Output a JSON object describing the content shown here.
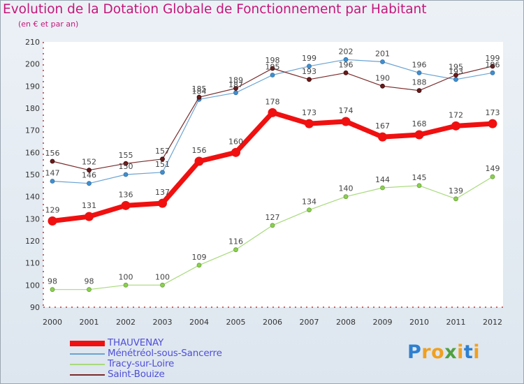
{
  "header": {
    "title": "Evolution de la Dotation Globale de Fonctionnement par Habitant",
    "subtitle": "(en € et par an)"
  },
  "chart_data": {
    "type": "line",
    "title": "Evolution de la Dotation Globale de Fonctionnement par Habitant",
    "subtitle": "(en € et par an)",
    "xlabel": "",
    "ylabel": "",
    "ylim": [
      90,
      210
    ],
    "yticks": [
      90,
      100,
      110,
      120,
      130,
      140,
      150,
      160,
      170,
      180,
      190,
      200,
      210
    ],
    "categories": [
      "2000",
      "2001",
      "2002",
      "2003",
      "2004",
      "2005",
      "2006",
      "2007",
      "2008",
      "2009",
      "2010",
      "2011",
      "2012"
    ],
    "series": [
      {
        "name": "THAUVENAY",
        "color": "#f01010",
        "values": [
          129,
          131,
          136,
          137,
          156,
          160,
          178,
          173,
          174,
          167,
          168,
          172,
          173
        ],
        "value_labels": [
          "129",
          "131",
          "136",
          "137",
          "156",
          "160",
          "178",
          "173",
          "174",
          "167",
          "168",
          "172",
          "173"
        ]
      },
      {
        "name": "Ménétréol-sous-Sancerre",
        "color": "#6aa3d2",
        "values": [
          147,
          146,
          150,
          151,
          184,
          187,
          195,
          199,
          202,
          201,
          196,
          193,
          196
        ],
        "value_labels": [
          "147",
          "146",
          "150",
          "151",
          "184",
          "187",
          "195",
          "199",
          "202",
          "201",
          "196",
          "193",
          "196"
        ]
      },
      {
        "name": "Tracy-sur-Loire",
        "color": "#a8da7c",
        "values": [
          98,
          98,
          100,
          100,
          109,
          116,
          127,
          134,
          140,
          144,
          145,
          139,
          149
        ],
        "value_labels": [
          "98",
          "98",
          "100",
          "100",
          "109",
          "116",
          "127",
          "134",
          "140",
          "144",
          "145",
          "139",
          "149"
        ]
      },
      {
        "name": "Saint-Bouize",
        "color": "#7a2a2a",
        "values": [
          156,
          152,
          155,
          157,
          185,
          189,
          198,
          193,
          196,
          190,
          188,
          195,
          199
        ],
        "value_labels": [
          "156",
          "152",
          "155",
          "157",
          "185",
          "189",
          "198",
          "193",
          "196",
          "190",
          "188",
          "195",
          "199"
        ]
      }
    ],
    "grid": false,
    "legend": "bottom-left"
  },
  "logo": {
    "text": "Proxiti",
    "letters": [
      "P",
      "r",
      "o",
      "x",
      "i",
      "t",
      "i"
    ],
    "colors": [
      "#2e7fd0",
      "#f0a020",
      "#f0a020",
      "#50a040",
      "#f0a020",
      "#2e7fd0",
      "#f0a020"
    ]
  }
}
